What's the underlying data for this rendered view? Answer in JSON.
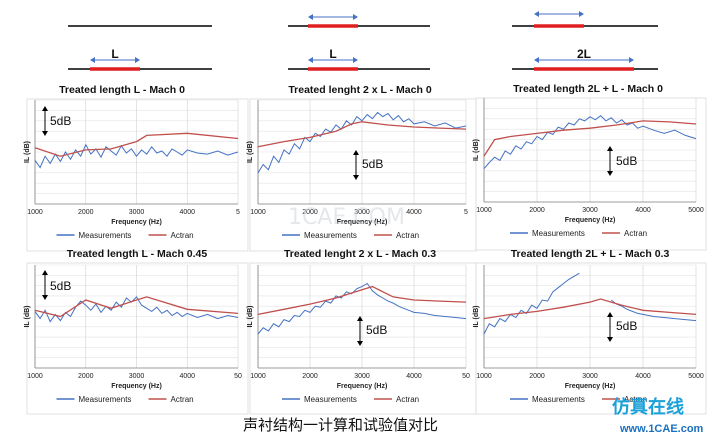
{
  "diagrams": [
    {
      "label": ""
    },
    {
      "label": ""
    },
    {
      "label": ""
    },
    {
      "label": "L"
    },
    {
      "label": "L"
    },
    {
      "label": "2L"
    }
  ],
  "scale_label": "5dB",
  "caption": "声衬结构一计算和试验值对比",
  "watermark": "1CAE.COM",
  "logo": {
    "cn": "仿真在线",
    "en": "www.1CAE.com"
  },
  "colors": {
    "measurements": "#4472c4",
    "actran": "#c0504d",
    "treated": "#e02020"
  },
  "chart_data": [
    {
      "type": "line",
      "title": "Treated length L - Mach 0",
      "xlabel": "Frequency (Hz)",
      "ylabel": "IL (dB)",
      "xticks": [
        "1000",
        "2000",
        "3000",
        "4000",
        "5"
      ],
      "xlim": [
        1000,
        5000
      ],
      "ylim": [
        0,
        10
      ],
      "legend": [
        "Measurements",
        "Actran"
      ],
      "series": [
        {
          "name": "Measurements",
          "x": [
            1000,
            1100,
            1200,
            1300,
            1400,
            1500,
            1600,
            1700,
            1800,
            1900,
            2000,
            2100,
            2200,
            2300,
            2400,
            2500,
            2600,
            2700,
            2800,
            2900,
            3000,
            3100,
            3200,
            3300,
            3400,
            3500,
            3600,
            3700,
            3800,
            3900,
            4000,
            4200,
            4400,
            4600,
            4800,
            5000
          ],
          "y": [
            4.2,
            3.5,
            4.6,
            3.9,
            4.8,
            4.1,
            5.0,
            4.3,
            5.2,
            4.6,
            5.7,
            4.8,
            5.3,
            4.5,
            5.5,
            5.1,
            4.7,
            5.6,
            4.9,
            5.3,
            4.6,
            5.2,
            4.8,
            5.5,
            4.9,
            5.1,
            4.6,
            5.3,
            5.0,
            4.7,
            5.2,
            4.9,
            4.8,
            5.1,
            4.7,
            5.0
          ]
        },
        {
          "name": "Actran",
          "x": [
            1000,
            1500,
            2000,
            2500,
            3000,
            3200,
            4000,
            5000
          ],
          "y": [
            5.4,
            4.6,
            5.2,
            5.3,
            6.0,
            6.6,
            6.8,
            6.3
          ]
        }
      ]
    },
    {
      "type": "line",
      "title": "Treated lenght 2 x L - Mach 0",
      "xlabel": "Frequency (Hz)",
      "ylabel": "IL (dB)",
      "xticks": [
        "1000",
        "2000",
        "3000",
        "4000",
        "5"
      ],
      "xlim": [
        1000,
        5000
      ],
      "ylim": [
        0,
        10
      ],
      "legend": [
        "Measurements",
        "Actran"
      ],
      "series": [
        {
          "name": "Measurements",
          "x": [
            1000,
            1100,
            1200,
            1300,
            1400,
            1500,
            1600,
            1700,
            1800,
            1900,
            2000,
            2100,
            2200,
            2300,
            2400,
            2500,
            2600,
            2700,
            2800,
            2900,
            3000,
            3100,
            3200,
            3300,
            3400,
            3500,
            3600,
            3700,
            3800,
            3900,
            4000,
            4200,
            4400,
            4600,
            4800,
            5000
          ],
          "y": [
            3.0,
            3.8,
            3.3,
            4.6,
            4.0,
            5.2,
            4.8,
            5.8,
            5.3,
            6.4,
            6.0,
            6.8,
            6.5,
            7.2,
            6.9,
            7.6,
            7.2,
            8.0,
            7.6,
            8.4,
            8.0,
            8.6,
            8.2,
            8.8,
            8.4,
            8.7,
            8.1,
            8.5,
            7.9,
            8.2,
            7.7,
            7.9,
            7.5,
            7.8,
            7.3,
            7.5
          ]
        },
        {
          "name": "Actran",
          "x": [
            1000,
            1500,
            2000,
            2500,
            2800,
            3000,
            3500,
            4000,
            4500,
            5000
          ],
          "y": [
            5.5,
            6.0,
            6.4,
            7.0,
            7.7,
            7.9,
            7.6,
            7.4,
            7.3,
            7.2
          ]
        }
      ]
    },
    {
      "type": "line",
      "title": "Treated length 2L + L - Mach 0",
      "xlabel": "Frequency (Hz)",
      "ylabel": "IL (dB)",
      "xticks": [
        "1000",
        "2000",
        "3000",
        "4000",
        "5000"
      ],
      "xlim": [
        1000,
        5000
      ],
      "ylim": [
        0,
        10
      ],
      "legend": [
        "Measurements",
        "Actran"
      ],
      "series": [
        {
          "name": "Measurements",
          "x": [
            1000,
            1100,
            1200,
            1300,
            1400,
            1500,
            1600,
            1700,
            1800,
            1900,
            2000,
            2100,
            2200,
            2300,
            2400,
            2500,
            2600,
            2700,
            2800,
            2900,
            3000,
            3100,
            3200,
            3300,
            3400,
            3500,
            3600,
            3700,
            3800,
            3900,
            4000,
            4200,
            4400,
            4600,
            4800,
            5000
          ],
          "y": [
            3.2,
            3.8,
            4.3,
            4.0,
            4.9,
            4.6,
            5.4,
            5.1,
            5.8,
            5.6,
            6.3,
            6.0,
            6.7,
            6.5,
            7.2,
            7.0,
            7.6,
            7.4,
            8.0,
            7.8,
            8.2,
            7.9,
            8.3,
            7.8,
            8.1,
            7.6,
            7.9,
            7.4,
            7.6,
            7.1,
            7.3,
            6.9,
            6.6,
            6.9,
            6.4,
            6.1
          ]
        },
        {
          "name": "Actran",
          "x": [
            1000,
            1200,
            1500,
            2000,
            2500,
            3000,
            3500,
            4000,
            4500,
            5000
          ],
          "y": [
            4.4,
            6.0,
            6.3,
            6.6,
            6.9,
            7.1,
            7.4,
            7.8,
            7.7,
            7.5
          ]
        }
      ]
    },
    {
      "type": "line",
      "title": "Treated length L - Mach 0.45",
      "xlabel": "Frequency (Hz)",
      "ylabel": "IL (dB)",
      "xticks": [
        "1000",
        "2000",
        "3000",
        "4000",
        "50"
      ],
      "xlim": [
        1000,
        5000
      ],
      "ylim": [
        0,
        10
      ],
      "legend": [
        "Measurements",
        "Actran"
      ],
      "series": [
        {
          "name": "Measurements",
          "x": [
            1000,
            1100,
            1200,
            1300,
            1400,
            1500,
            1600,
            1700,
            1800,
            1900,
            2000,
            2100,
            2200,
            2300,
            2400,
            2500,
            2600,
            2700,
            2800,
            2900,
            3000,
            3100,
            3200,
            3300,
            3400,
            3500,
            3600,
            3700,
            3800,
            3900,
            4000,
            4200,
            4400,
            4600,
            4800,
            5000
          ],
          "y": [
            5.5,
            4.8,
            5.6,
            4.5,
            5.2,
            4.6,
            5.4,
            5.0,
            5.9,
            6.5,
            6.1,
            5.6,
            6.2,
            5.4,
            6.0,
            5.6,
            6.4,
            5.9,
            6.8,
            6.4,
            6.9,
            6.1,
            5.8,
            5.5,
            5.9,
            5.3,
            5.6,
            5.1,
            5.4,
            5.0,
            5.3,
            4.9,
            5.2,
            4.8,
            5.1,
            4.9
          ]
        },
        {
          "name": "Actran",
          "x": [
            1000,
            1500,
            2000,
            2500,
            3000,
            3200,
            4000,
            5000
          ],
          "y": [
            5.6,
            5.0,
            6.6,
            5.8,
            6.6,
            6.9,
            5.7,
            5.3
          ]
        }
      ]
    },
    {
      "type": "line",
      "title": "Treated lenght 2 x L - Mach 0.3",
      "xlabel": "Frequency (Hz)",
      "ylabel": "IL (dB)",
      "xticks": [
        "1000",
        "2000",
        "3000",
        "4000",
        "50"
      ],
      "xlim": [
        1000,
        5000
      ],
      "ylim": [
        0,
        10
      ],
      "legend": [
        "Measurements",
        "Actran"
      ],
      "series": [
        {
          "name": "Measurements",
          "x": [
            1000,
            1100,
            1200,
            1300,
            1400,
            1500,
            1600,
            1700,
            1800,
            1900,
            2000,
            2100,
            2200,
            2300,
            2400,
            2500,
            2600,
            2700,
            2800,
            2900,
            3000,
            3100,
            3200,
            3300,
            3400,
            3500,
            3600,
            3700,
            3800,
            3900,
            4000,
            4200,
            4400,
            4600,
            4800,
            5000
          ],
          "y": [
            3.3,
            3.9,
            3.6,
            4.3,
            4.0,
            4.7,
            4.5,
            5.1,
            5.0,
            5.6,
            5.4,
            6.0,
            5.9,
            6.5,
            6.3,
            7.0,
            6.8,
            7.4,
            7.2,
            7.7,
            7.9,
            8.2,
            7.5,
            7.1,
            6.8,
            6.5,
            6.3,
            6.0,
            5.8,
            5.6,
            5.4,
            5.3,
            5.1,
            5.0,
            4.9,
            4.8
          ]
        },
        {
          "name": "Actran",
          "x": [
            1000,
            1500,
            2000,
            2500,
            3000,
            3200,
            3600,
            4000,
            4500,
            5000
          ],
          "y": [
            5.2,
            5.7,
            6.2,
            6.8,
            7.6,
            7.9,
            6.9,
            6.6,
            6.5,
            6.4
          ]
        }
      ]
    },
    {
      "type": "line",
      "title": "Treated length 2L + L - Mach 0.3",
      "xlabel": "Frequency (Hz)",
      "ylabel": "IL (dB)",
      "xticks": [
        "1000",
        "2000",
        "3000",
        "4000",
        "5000"
      ],
      "xlim": [
        1000,
        5000
      ],
      "ylim": [
        0,
        10
      ],
      "legend": [
        "Measurements",
        "Actran"
      ],
      "series": [
        {
          "name": "Measurements",
          "x": [
            1000,
            1100,
            1200,
            1300,
            1400,
            1500,
            1600,
            1700,
            1800,
            1900,
            2000,
            2100,
            2200,
            2300,
            2400,
            2500,
            2600,
            2700,
            2800,
            3400,
            3500,
            3600,
            3700,
            3800,
            3900,
            4000,
            4200,
            4400,
            4600,
            4800,
            5000
          ],
          "y": [
            3.3,
            4.3,
            4.0,
            4.8,
            4.5,
            5.2,
            4.9,
            5.6,
            5.3,
            6.1,
            5.8,
            6.6,
            6.5,
            7.4,
            7.8,
            8.2,
            8.6,
            8.9,
            9.2,
            6.6,
            6.2,
            6.0,
            5.7,
            5.5,
            5.3,
            5.2,
            5.0,
            4.9,
            4.8,
            4.7,
            4.6
          ]
        },
        {
          "name": "Actran",
          "x": [
            1000,
            1500,
            2000,
            2500,
            3000,
            3200,
            3600,
            4000,
            4500,
            5000
          ],
          "y": [
            4.8,
            5.2,
            5.5,
            5.9,
            6.4,
            6.7,
            6.1,
            5.6,
            5.4,
            5.2
          ]
        }
      ]
    }
  ]
}
